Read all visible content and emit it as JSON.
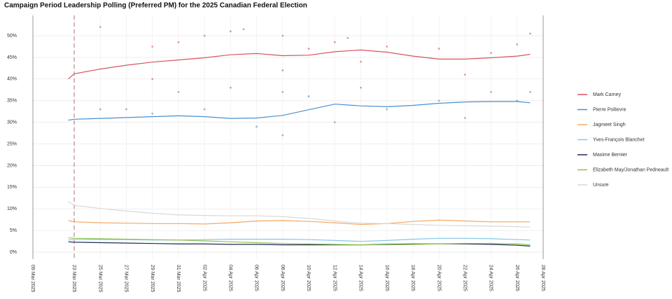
{
  "chart_data": {
    "type": "line",
    "title": "Campaign Period Leadership Polling (Preferred PM) for the 2025 Canadian Federal Election",
    "x": [
      "21 Mar 2025",
      "23 Mar 2025",
      "25 Mar 2025",
      "27 Mar 2025",
      "29 Mar 2025",
      "31 Mar 2025",
      "02 Apr 2025",
      "04 Apr 2025",
      "06 Apr 2025",
      "08 Apr 2025",
      "10 Apr 2025",
      "12 Apr 2025",
      "14 Apr 2025",
      "16 Apr 2025",
      "18 Apr 2025",
      "20 Apr 2025",
      "22 Apr 2025",
      "24 Apr 2025",
      "26 Apr 2025",
      "27 Apr 2025"
    ],
    "series": [
      {
        "name": "Mark Carney",
        "color": "#d7545f",
        "values": [
          40,
          41.2,
          42.3,
          43.2,
          43.9,
          44.4,
          44.9,
          45.6,
          45.9,
          45.4,
          45.5,
          46.3,
          46.7,
          46.2,
          45.3,
          44.6,
          44.6,
          44.9,
          45.3,
          45.7
        ],
        "polls": {
          "x": [
            "25 Mar 2025",
            "29 Mar 2025",
            "29 Mar 2025",
            "31 Mar 2025",
            "02 Apr 2025",
            "04 Apr 2025",
            "05 Apr 2025",
            "08 Apr 2025",
            "08 Apr 2025",
            "10 Apr 2025",
            "12 Apr 2025",
            "13 Apr 2025",
            "14 Apr 2025",
            "16 Apr 2025",
            "20 Apr 2025",
            "22 Apr 2025",
            "24 Apr 2025",
            "26 Apr 2025",
            "27 Apr 2025"
          ],
          "values": [
            52,
            47.5,
            40,
            48.5,
            50,
            51,
            51.5,
            50,
            42,
            47,
            48.5,
            49.5,
            44,
            47.5,
            47,
            41,
            46,
            48,
            50.5
          ]
        }
      },
      {
        "name": "Pierre Poilievre",
        "color": "#4a8fcf",
        "values": [
          30.5,
          30.7,
          30.9,
          31.1,
          31.3,
          31.5,
          31.3,
          30.9,
          31.0,
          31.6,
          32.9,
          34.2,
          33.8,
          33.6,
          33.9,
          34.4,
          34.7,
          34.8,
          34.8,
          34.5
        ],
        "polls": {
          "x": [
            "25 Mar 2025",
            "27 Mar 2025",
            "29 Mar 2025",
            "31 Mar 2025",
            "02 Apr 2025",
            "04 Apr 2025",
            "06 Apr 2025",
            "08 Apr 2025",
            "08 Apr 2025",
            "10 Apr 2025",
            "12 Apr 2025",
            "14 Apr 2025",
            "16 Apr 2025",
            "20 Apr 2025",
            "22 Apr 2025",
            "24 Apr 2025",
            "26 Apr 2025",
            "27 Apr 2025"
          ],
          "values": [
            33,
            33,
            32,
            37,
            33,
            38,
            29,
            37,
            27,
            36,
            30,
            38,
            33,
            35,
            31,
            37,
            35,
            37
          ]
        }
      },
      {
        "name": "Jagmeet Singh",
        "color": "#f4a862",
        "values": [
          7.3,
          7.0,
          6.8,
          6.7,
          6.6,
          6.6,
          6.5,
          6.8,
          7.2,
          7.3,
          7.1,
          6.8,
          6.4,
          6.6,
          7.1,
          7.4,
          7.2,
          7.0,
          7.0,
          7.0
        ]
      },
      {
        "name": "Yves-François Blanchet",
        "color": "#86c6ea",
        "values": [
          2.8,
          2.9,
          2.9,
          2.9,
          2.8,
          2.8,
          2.9,
          3.0,
          3.0,
          3.0,
          2.9,
          2.7,
          2.5,
          2.7,
          3.0,
          3.2,
          3.2,
          3.1,
          2.9,
          2.8
        ]
      },
      {
        "name": "Maxime Bernier",
        "color": "#1f2a55",
        "values": [
          2.4,
          2.3,
          2.2,
          2.1,
          2.0,
          1.9,
          1.9,
          1.8,
          1.8,
          1.7,
          1.7,
          1.7,
          1.7,
          1.8,
          1.9,
          1.9,
          1.9,
          1.8,
          1.6,
          1.4
        ]
      },
      {
        "name": "Elizabeth May/Jonathan Pedneault",
        "color": "#8fc24c",
        "values": [
          3.3,
          3.2,
          3.1,
          3.0,
          2.9,
          2.8,
          2.6,
          2.4,
          2.2,
          2.0,
          1.9,
          1.8,
          1.7,
          1.7,
          1.8,
          1.9,
          2.0,
          2.0,
          1.9,
          1.7
        ]
      },
      {
        "name": "Unsure",
        "color": "#d9d9d9",
        "values": [
          11.7,
          10.8,
          10.1,
          9.5,
          9.0,
          8.6,
          8.5,
          8.4,
          8.4,
          8.2,
          7.8,
          7.2,
          6.7,
          6.6,
          6.4,
          6.2,
          6.1,
          6.0,
          5.9,
          5.8
        ]
      }
    ],
    "vlines": [
      "23 Mar 2025"
    ],
    "ylim": [
      -1.6,
      53.4
    ],
    "yticks": [
      {
        "value": 0,
        "label": "0%"
      },
      {
        "value": 5,
        "label": "5%"
      },
      {
        "value": 10,
        "label": "10%"
      },
      {
        "value": 15,
        "label": "15%"
      },
      {
        "value": 20,
        "label": "20%"
      },
      {
        "value": 25,
        "label": "25%"
      },
      {
        "value": 30,
        "label": "30%"
      },
      {
        "value": 35,
        "label": "35%"
      },
      {
        "value": 40,
        "label": "40%"
      },
      {
        "value": 45,
        "label": "45%"
      },
      {
        "value": 50,
        "label": "50%"
      }
    ],
    "xticks": [
      "09 Mar 2025",
      "23 Mar 2025",
      "25 Mar 2025",
      "27 Mar 2025",
      "29 Mar 2025",
      "31 Mar 2025",
      "02 Apr 2025",
      "04 Apr 2025",
      "06 Apr 2025",
      "08 Apr 2025",
      "10 Apr 2025",
      "12 Apr 2025",
      "14 Apr 2025",
      "16 Apr 2025",
      "18 Apr 2025",
      "20 Apr 2025",
      "22 Apr 2025",
      "24 Apr 2025",
      "26 Apr 2025",
      "28 Apr 2025"
    ],
    "grid": true,
    "legend": "right"
  }
}
